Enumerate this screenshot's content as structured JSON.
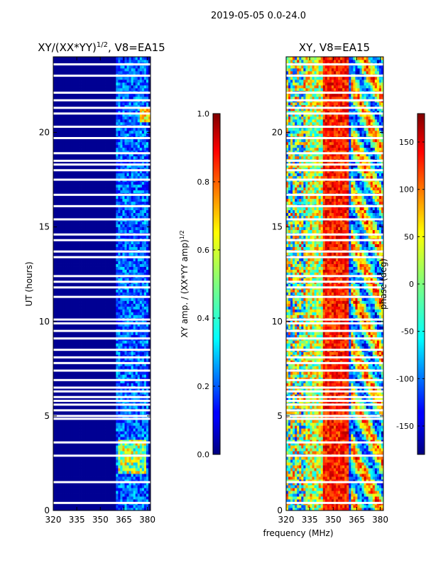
{
  "figure_title": "2019-05-05 0.0-24.0",
  "colors": {
    "jet": [
      "#00007f",
      "#0000ff",
      "#007fff",
      "#00ffff",
      "#7fff7f",
      "#ffff00",
      "#ff7f00",
      "#ff0000",
      "#7f0000"
    ],
    "background_blue": "#00007f",
    "gap": "#ffffff"
  },
  "chart_data": [
    {
      "type": "heatmap",
      "panel": "left",
      "title": "XY/(XX*YY)",
      "title_sup": "1/2",
      "title_suffix": ", V8=EA15",
      "xlabel": "",
      "ylabel": "UT (hours)",
      "xlim": [
        320,
        382
      ],
      "ylim": [
        0,
        24
      ],
      "xticks": [
        "320",
        "335",
        "350",
        "365",
        "380"
      ],
      "xtick_values": [
        320,
        335,
        350,
        365,
        380
      ],
      "yticks": [
        "0",
        "5",
        "10",
        "15",
        "20"
      ],
      "ytick_values": [
        0,
        5,
        10,
        15,
        20
      ],
      "data_gap_hours": [
        0.4,
        1.5,
        2.9,
        3.6,
        4.85,
        5.0,
        5.3,
        5.6,
        5.8,
        6.0,
        6.3,
        6.5,
        6.9,
        7.4,
        7.8,
        8.1,
        8.5,
        9.1,
        9.5,
        9.9,
        10.1,
        11.3,
        11.8,
        12.1,
        12.4,
        13.4,
        13.7,
        14.3,
        14.6,
        15.4,
        16.1,
        16.7,
        17.5,
        18.0,
        18.3,
        18.5,
        18.9,
        19.7,
        20.3,
        21.0,
        21.3,
        21.7,
        22.1,
        23.0,
        23.6
      ],
      "colorbar": {
        "label": "XY amp. / (XX*YY amp)",
        "label_sup": "1/2",
        "range": [
          0.0,
          1.0
        ],
        "ticks": [
          "0.0",
          "0.2",
          "0.4",
          "0.6",
          "0.8",
          "1.0"
        ],
        "tick_values": [
          0.0,
          0.2,
          0.4,
          0.6,
          0.8,
          1.0
        ]
      }
    },
    {
      "type": "heatmap",
      "panel": "right",
      "title": "XY, V8=EA15",
      "xlabel": "frequency (MHz)",
      "ylabel": "",
      "xlim": [
        320,
        382
      ],
      "ylim": [
        0,
        24
      ],
      "xticks": [
        "320",
        "335",
        "350",
        "365",
        "380"
      ],
      "xtick_values": [
        320,
        335,
        350,
        365,
        380
      ],
      "yticks": [
        "0",
        "5",
        "10",
        "15",
        "20"
      ],
      "ytick_values": [
        0,
        5,
        10,
        15,
        20
      ],
      "data_gap_hours": [
        0.4,
        1.5,
        2.9,
        3.6,
        4.85,
        5.0,
        5.3,
        5.6,
        5.8,
        6.0,
        6.3,
        6.5,
        6.9,
        7.4,
        7.8,
        8.1,
        8.5,
        9.1,
        9.5,
        9.9,
        10.1,
        11.3,
        11.8,
        12.1,
        12.4,
        13.4,
        13.7,
        14.3,
        14.6,
        15.4,
        16.1,
        16.7,
        17.5,
        18.0,
        18.3,
        18.5,
        18.9,
        19.7,
        20.3,
        21.0,
        21.3,
        21.7,
        22.1,
        23.0,
        23.6
      ],
      "colorbar": {
        "label": "phase (deg)",
        "range": [
          -180,
          180
        ],
        "ticks": [
          "-150",
          "-100",
          "-50",
          "0",
          "50",
          "100",
          "150"
        ],
        "tick_values": [
          -150,
          -100,
          -50,
          0,
          50,
          100,
          150
        ]
      }
    }
  ]
}
